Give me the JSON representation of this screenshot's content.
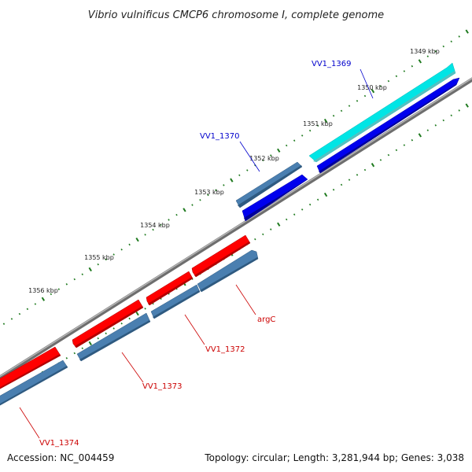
{
  "title": "Vibrio vulnificus CMCP6 chromosome I, complete genome",
  "footer": {
    "accession": "Accession: NC_004459",
    "topology": "Topology: circular; Length: 3,281,944 bp; Genes: 3,038"
  },
  "colors": {
    "backbone": "#8a8a8a",
    "tick": "#1f7a1f",
    "forward_cds": "#ff0000",
    "reverse_cds": "#4a7fb0",
    "blue_cds": "#0000ee",
    "cyan_cds": "#00e8e8",
    "label_red": "#cc0000",
    "label_blue": "#0000cc"
  },
  "scale_labels": [
    "1349 kbp",
    "1350 kbp",
    "1351 kbp",
    "1352 kbp",
    "1353 kbp",
    "1354 kbp",
    "1355 kbp",
    "1356 kbp"
  ],
  "gene_labels": [
    {
      "name": "VV1_1369",
      "color": "label_blue"
    },
    {
      "name": "VV1_1370",
      "color": "label_blue"
    },
    {
      "name": "argC",
      "color": "label_red"
    },
    {
      "name": "VV1_1372",
      "color": "label_red"
    },
    {
      "name": "VV1_1373",
      "color": "label_red"
    },
    {
      "name": "VV1_1374",
      "color": "label_red"
    }
  ]
}
